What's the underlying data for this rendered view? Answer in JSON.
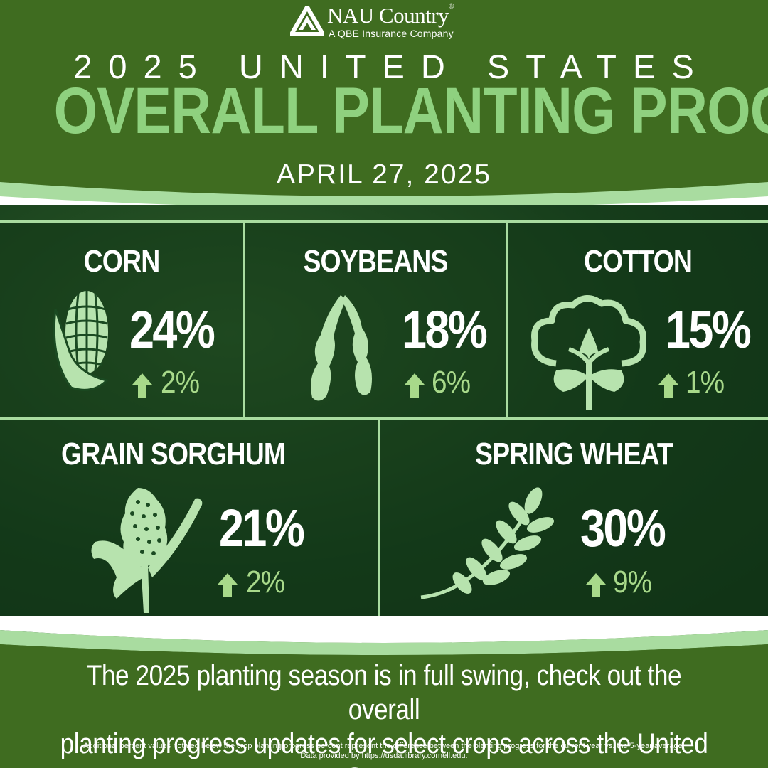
{
  "brand": {
    "name": "NAU Country",
    "registered": "®",
    "tagline": "A QBE Insurance Company"
  },
  "header": {
    "line1": "2025 UNITED STATES",
    "line2": "OVERALL PLANTING PROGRESS",
    "date": "APRIL 27, 2025"
  },
  "crops": [
    {
      "name": "CORN",
      "progress": "24%",
      "change": "2%",
      "change_direction": "up",
      "icon": "corn-icon"
    },
    {
      "name": "SOYBEANS",
      "progress": "18%",
      "change": "6%",
      "change_direction": "up",
      "icon": "soybean-icon"
    },
    {
      "name": "COTTON",
      "progress": "15%",
      "change": "1%",
      "change_direction": "up",
      "icon": "cotton-icon"
    },
    {
      "name": "GRAIN SORGHUM",
      "progress": "21%",
      "change": "2%",
      "change_direction": "up",
      "icon": "sorghum-icon"
    },
    {
      "name": "SPRING WHEAT",
      "progress": "30%",
      "change": "9%",
      "change_direction": "up",
      "icon": "wheat-icon"
    }
  ],
  "footer": {
    "line1": "The 2025 planting season is in full swing, check out the overall",
    "line2": "planting progress updates for select crops across the  United States.",
    "note1": "Additional percent values notated below the crop planting progress percent represent the difference between the planting progress for the current year vs. the 5-year average.",
    "note2": "Data provided by https://usda.library.cornell.edu."
  },
  "colors": {
    "background_green": "#3f6c20",
    "title_light_green": "#8fd17f",
    "icon_green": "#b7e3ae",
    "arrow_green": "#a8d98a",
    "panel_border": "#a9dca0"
  }
}
